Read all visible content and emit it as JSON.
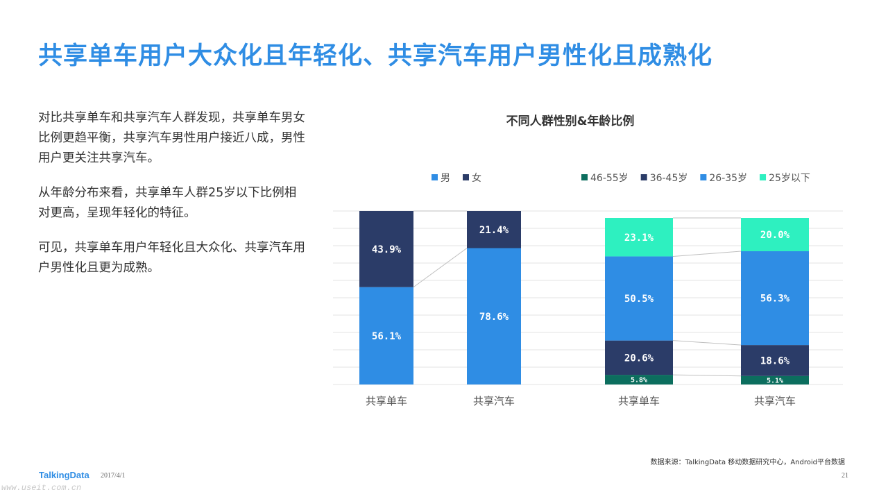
{
  "title": "共享单车用户大众化且年轻化、共享汽车用户男性化且成熟化",
  "paragraphs": [
    "对比共享单车和共享汽车人群发现，共享单车男女比例更趋平衡，共享汽车男性用户接近八成，男性用户更关注共享汽车。",
    "从年龄分布来看，共享单车人群25岁以下比例相对更高，呈现年轻化的特征。",
    "可见，共享单车用户年轻化且大众化、共享汽车用户男性化且更为成熟。"
  ],
  "chart_title": "不同人群性别&年龄比例",
  "chart_data": [
    {
      "type": "bar",
      "stacked": true,
      "categories": [
        "共享单车",
        "共享汽车"
      ],
      "series": [
        {
          "name": "男",
          "color": "#2f8de4",
          "values": [
            56.1,
            78.6
          ],
          "labels": [
            "56.1%",
            "78.6%"
          ]
        },
        {
          "name": "女",
          "color": "#2b3c68",
          "values": [
            43.9,
            21.4
          ],
          "labels": [
            "43.9%",
            "21.4%"
          ]
        }
      ],
      "ylim": [
        0,
        100
      ],
      "legend_position": "top",
      "grid": true
    },
    {
      "type": "bar",
      "stacked": true,
      "categories": [
        "共享单车",
        "共享汽车"
      ],
      "series": [
        {
          "name": "46-55岁",
          "color": "#0c6e5e",
          "values": [
            5.8,
            5.1
          ],
          "labels": [
            "5.8%",
            "5.1%"
          ]
        },
        {
          "name": "36-45岁",
          "color": "#2b3c68",
          "values": [
            20.6,
            18.6
          ],
          "labels": [
            "20.6%",
            "18.6%"
          ]
        },
        {
          "name": "26-35岁",
          "color": "#2f8de4",
          "values": [
            50.5,
            56.3
          ],
          "labels": [
            "50.5%",
            "56.3%"
          ]
        },
        {
          "name": "25岁以下",
          "color": "#2ef0c0",
          "values": [
            23.1,
            20.0
          ],
          "labels": [
            "23.1%",
            "20.0%"
          ]
        }
      ],
      "ylim": [
        0,
        100
      ],
      "legend_position": "top",
      "grid": true
    }
  ],
  "source": "数据来源：TalkingData 移动数据研究中心，Android平台数据",
  "footer": {
    "logo": "TalkingData",
    "date": "2017/4/1",
    "page": "21",
    "watermark": "www.useit.com.cn"
  }
}
